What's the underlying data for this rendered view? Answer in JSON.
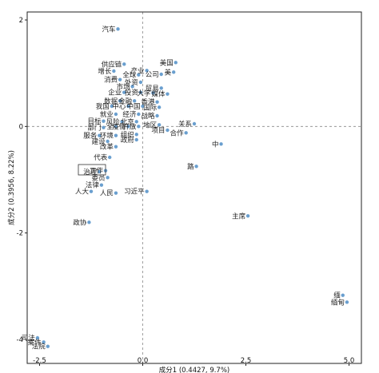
{
  "chart_data": {
    "type": "scatter",
    "xlabel": "成分1 (0.4427, 9.7%)",
    "ylabel": "成分2 (0.3956, 8.22%)",
    "xlim": [
      -2.8,
      5.3
    ],
    "ylim": [
      -4.45,
      2.15
    ],
    "xticks": [
      -2.5,
      0.0,
      2.5,
      5.0
    ],
    "xtick_labels": [
      "-2.5",
      "0.0",
      "2.5",
      "5.0"
    ],
    "yticks": [
      2,
      0,
      -2,
      -4
    ],
    "ytick_labels": [
      "2",
      "0",
      "-2",
      "-4"
    ],
    "reference_lines": {
      "x": 0,
      "y": 0
    },
    "points": [
      {
        "label": "汽车",
        "x": -0.6,
        "y": 1.83
      },
      {
        "label": "美国",
        "x": 0.8,
        "y": 1.2
      },
      {
        "label": "供应链",
        "x": -0.45,
        "y": 1.17
      },
      {
        "label": "增长",
        "x": -0.7,
        "y": 1.04
      },
      {
        "label": "产业",
        "x": 0.1,
        "y": 1.05
      },
      {
        "label": "美",
        "x": 0.75,
        "y": 1.02
      },
      {
        "label": "全球",
        "x": -0.1,
        "y": 0.97
      },
      {
        "label": "公司",
        "x": 0.45,
        "y": 0.98
      },
      {
        "label": "消费",
        "x": -0.55,
        "y": 0.88
      },
      {
        "label": "外资",
        "x": -0.05,
        "y": 0.83
      },
      {
        "label": "市场",
        "x": -0.25,
        "y": 0.75
      },
      {
        "label": "贸易",
        "x": 0.45,
        "y": 0.72
      },
      {
        "label": "企业",
        "x": -0.45,
        "y": 0.64
      },
      {
        "label": "投资",
        "x": -0.05,
        "y": 0.64
      },
      {
        "label": "大学",
        "x": 0.25,
        "y": 0.63
      },
      {
        "label": "媒体",
        "x": 0.6,
        "y": 0.61
      },
      {
        "label": "数据",
        "x": -0.55,
        "y": 0.48
      },
      {
        "label": "金融",
        "x": -0.2,
        "y": 0.48
      },
      {
        "label": "香港",
        "x": 0.35,
        "y": 0.46
      },
      {
        "label": "我国",
        "x": -0.75,
        "y": 0.38
      },
      {
        "label": "中心",
        "x": -0.35,
        "y": 0.38
      },
      {
        "label": "中国",
        "x": 0.0,
        "y": 0.38
      },
      {
        "label": "国际",
        "x": 0.4,
        "y": 0.36
      },
      {
        "label": "就业",
        "x": -0.65,
        "y": 0.23
      },
      {
        "label": "经济",
        "x": -0.1,
        "y": 0.23
      },
      {
        "label": "战略",
        "x": 0.35,
        "y": 0.2
      },
      {
        "label": "目标",
        "x": -0.95,
        "y": 0.1
      },
      {
        "label": "风险",
        "x": -0.5,
        "y": 0.09
      },
      {
        "label": "北京",
        "x": -0.15,
        "y": 0.09
      },
      {
        "label": "地区",
        "x": 0.4,
        "y": 0.03
      },
      {
        "label": "关系",
        "x": 1.25,
        "y": 0.05
      },
      {
        "label": "部门",
        "x": -0.95,
        "y": -0.02
      },
      {
        "label": "全",
        "x": -0.65,
        "y": 0.0
      },
      {
        "label": "疫情",
        "x": -0.35,
        "y": 0.0
      },
      {
        "label": "开放",
        "x": -0.1,
        "y": 0.0
      },
      {
        "label": "项目",
        "x": 0.6,
        "y": -0.07
      },
      {
        "label": "合作",
        "x": 1.05,
        "y": -0.12
      },
      {
        "label": "服务",
        "x": -1.05,
        "y": -0.17
      },
      {
        "label": "环境",
        "x": -0.65,
        "y": -0.17
      },
      {
        "label": "组织",
        "x": -0.15,
        "y": -0.15
      },
      {
        "label": "建设",
        "x": -0.85,
        "y": -0.28
      },
      {
        "label": "政府",
        "x": -0.15,
        "y": -0.25
      },
      {
        "label": "中",
        "x": 1.9,
        "y": -0.33
      },
      {
        "label": "改革",
        "x": -0.65,
        "y": -0.38
      },
      {
        "label": "代表",
        "x": -0.8,
        "y": -0.58
      },
      {
        "label": "路",
        "x": 1.3,
        "y": -0.75
      },
      {
        "label": "治理",
        "x": -1.05,
        "y": -0.85
      },
      {
        "label": "工作",
        "x": -0.9,
        "y": -0.83
      },
      {
        "label": "委员",
        "x": -0.85,
        "y": -0.96
      },
      {
        "label": "法律",
        "x": -1.0,
        "y": -1.1
      },
      {
        "label": "习近平",
        "x": 0.1,
        "y": -1.22
      },
      {
        "label": "人大",
        "x": -1.25,
        "y": -1.22
      },
      {
        "label": "人民",
        "x": -0.65,
        "y": -1.25
      },
      {
        "label": "主席",
        "x": 2.55,
        "y": -1.68
      },
      {
        "label": "政协",
        "x": -1.3,
        "y": -1.8
      },
      {
        "label": "缅",
        "x": 4.85,
        "y": -3.17
      },
      {
        "label": "缅甸",
        "x": 4.95,
        "y": -3.3
      },
      {
        "label": "司法",
        "x": -2.55,
        "y": -3.97
      },
      {
        "label": "案件",
        "x": -2.4,
        "y": -4.05
      },
      {
        "label": "法院",
        "x": -2.3,
        "y": -4.13
      }
    ]
  }
}
